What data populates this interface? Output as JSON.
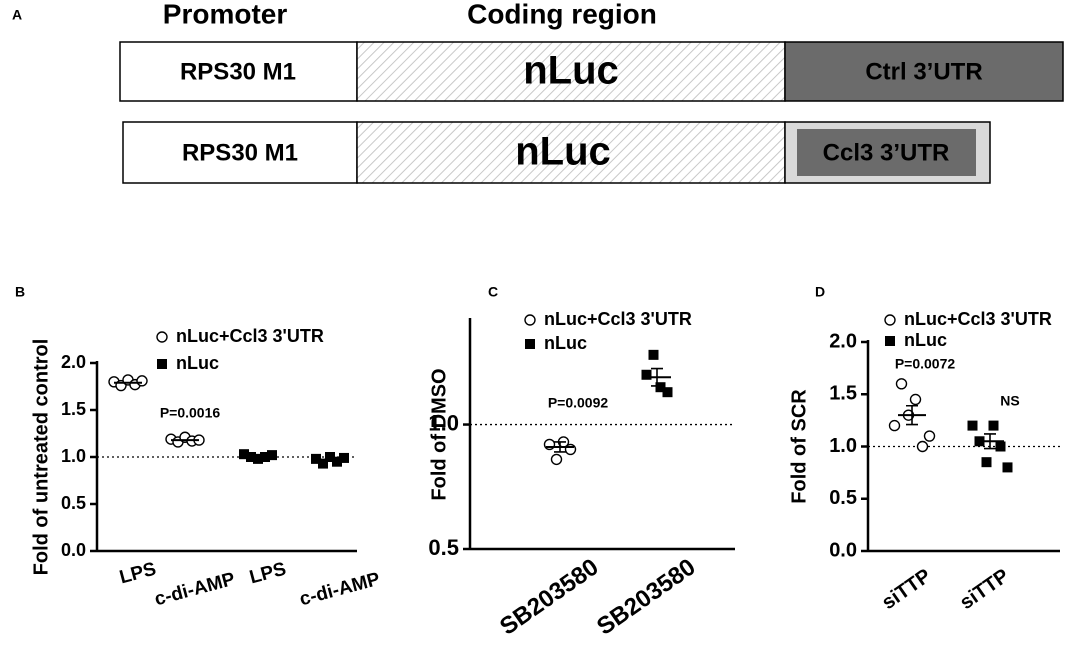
{
  "diagram": {
    "panel": "A",
    "headers": [
      "Promoter",
      "Coding region"
    ],
    "rows": [
      [
        "RPS30 M1",
        "nLuc",
        "Ctrl 3’UTR"
      ],
      [
        "RPS30 M1",
        "nLuc",
        "Ccl3 3’UTR"
      ]
    ]
  },
  "chart_data": [
    {
      "type": "dot",
      "panel": "B",
      "y_label": "Fold of untreated control",
      "categories": [
        "LPS",
        "c-di-AMP",
        "LPS",
        "c-di-AMP"
      ],
      "ylim": [
        0,
        2
      ],
      "yticks": [
        {
          "value": 0,
          "label": "0.0"
        },
        0.5,
        {
          "value": 1,
          "label": "1.0"
        },
        1.5,
        {
          "value": 2,
          "label": "2.0"
        }
      ],
      "reference_line": 1,
      "annotations": [
        "P=0.0016"
      ],
      "series": [
        {
          "name": "nLuc+Ccl3 3'UTR",
          "marker": "circle-open",
          "color": "#000000",
          "values": [
            [
              1.8,
              1.76,
              1.82,
              1.77,
              1.81
            ],
            [
              1.19,
              1.16,
              1.21,
              1.17,
              1.18
            ],
            null,
            null
          ],
          "means": [
            1.79,
            1.18,
            null,
            null
          ]
        },
        {
          "name": "nLuc",
          "marker": "square",
          "color": "#000000",
          "values": [
            null,
            null,
            [
              1.03,
              1.0,
              0.98,
              1.0,
              1.02
            ],
            [
              0.98,
              0.93,
              1.0,
              0.95,
              0.99
            ]
          ],
          "means": [
            null,
            null,
            1.01,
            0.97
          ]
        }
      ]
    },
    {
      "type": "dot",
      "panel": "C",
      "y_label": "Fold of DMSO",
      "categories": [
        "SB203580",
        "SB203580"
      ],
      "ylim": [
        0.5,
        1.42
      ],
      "yticks": [
        0.5,
        {
          "value": 1,
          "label": "1.0"
        }
      ],
      "reference_line": 1,
      "annotations": [
        "P=0.0092"
      ],
      "series": [
        {
          "name": "nLuc+Ccl3 3'UTR",
          "marker": "circle-open",
          "color": "#000000",
          "values": [
            [
              0.92,
              0.86,
              0.93,
              0.9
            ],
            null
          ],
          "means": [
            0.91,
            null
          ],
          "errors": [
            0.02,
            null
          ]
        },
        {
          "name": "nLuc",
          "marker": "square",
          "color": "#000000",
          "values": [
            null,
            [
              1.2,
              1.28,
              1.15,
              1.13
            ]
          ],
          "means": [
            null,
            1.19
          ],
          "errors": [
            null,
            0.035
          ]
        }
      ]
    },
    {
      "type": "dot",
      "panel": "D",
      "y_label": "Fold of SCR",
      "categories": [
        "siTTP",
        "siTTP"
      ],
      "ylim": [
        0,
        2
      ],
      "yticks": [
        {
          "value": 0,
          "label": "0.0"
        },
        0.5,
        {
          "value": 1,
          "label": "1.0"
        },
        1.5,
        {
          "value": 2,
          "label": "2.0"
        }
      ],
      "reference_line": 1,
      "annotations": [
        "P=0.0072",
        "NS"
      ],
      "series": [
        {
          "name": "nLuc+Ccl3 3'UTR",
          "marker": "circle-open",
          "color": "#000000",
          "values": [
            [
              1.2,
              1.6,
              1.3,
              1.45,
              1.0,
              1.1
            ],
            null
          ],
          "means": [
            1.3,
            null
          ],
          "errors": [
            0.09,
            null
          ]
        },
        {
          "name": "nLuc",
          "marker": "square",
          "color": "#000000",
          "values": [
            null,
            [
              1.2,
              1.05,
              0.85,
              1.2,
              1.0,
              0.8
            ]
          ],
          "means": [
            null,
            1.05
          ],
          "errors": [
            null,
            0.07
          ]
        }
      ]
    }
  ]
}
